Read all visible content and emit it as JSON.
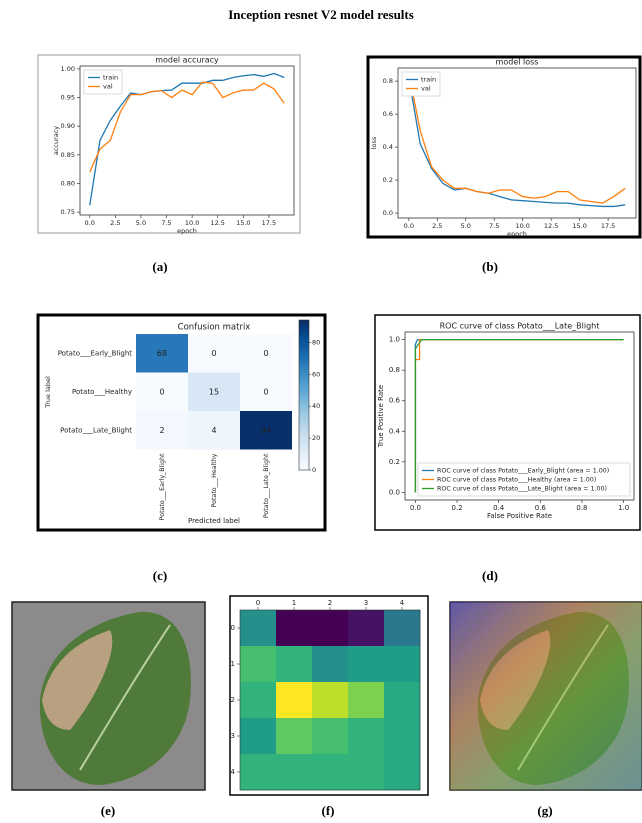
{
  "title": "Inception resnet V2 model results",
  "captions": [
    "(a)",
    "(b)",
    "(c)",
    "(d)",
    "(e)",
    "(f)",
    "(g)"
  ],
  "chart_data": [
    {
      "type": "line",
      "title": "model accuracy",
      "x_label": "epoch",
      "y_label": "accuracy",
      "x": [
        0,
        1,
        2,
        3,
        4,
        5,
        6,
        7,
        8,
        9,
        10,
        11,
        12,
        13,
        14,
        15,
        16,
        17,
        18,
        19
      ],
      "series": [
        {
          "name": "train",
          "color": "#1f77b4",
          "values": [
            0.762,
            0.875,
            0.91,
            0.935,
            0.958,
            0.955,
            0.96,
            0.962,
            0.963,
            0.975,
            0.975,
            0.975,
            0.98,
            0.98,
            0.985,
            0.988,
            0.99,
            0.987,
            0.992,
            0.985
          ]
        },
        {
          "name": "val",
          "color": "#ff7f0e",
          "values": [
            0.82,
            0.86,
            0.875,
            0.925,
            0.955,
            0.955,
            0.96,
            0.962,
            0.95,
            0.963,
            0.955,
            0.977,
            0.975,
            0.95,
            0.958,
            0.963,
            0.963,
            0.975,
            0.965,
            0.94
          ]
        }
      ],
      "xlim": [
        -0.95,
        19.95
      ],
      "ylim": [
        0.745,
        1.005
      ],
      "xticks": [
        {
          "value": 0,
          "label": "0.0"
        },
        2.5,
        {
          "value": 5,
          "label": "5.0"
        },
        7.5,
        {
          "value": 10,
          "label": "10.0"
        },
        12.5,
        {
          "value": 15,
          "label": "15.0"
        },
        17.5
      ],
      "yticks": [
        0.75,
        {
          "value": 0.8,
          "label": "0.80"
        },
        0.85,
        {
          "value": 0.9,
          "label": "0.90"
        },
        0.95,
        {
          "value": 1,
          "label": "1.00"
        }
      ],
      "legend": "upper left"
    },
    {
      "type": "line",
      "title": "model loss",
      "x_label": "epoch",
      "y_label": "loss",
      "x": [
        0,
        1,
        2,
        3,
        4,
        5,
        6,
        7,
        8,
        9,
        10,
        11,
        12,
        13,
        14,
        15,
        16,
        17,
        18,
        19
      ],
      "series": [
        {
          "name": "train",
          "color": "#1f77b4",
          "values": [
            0.82,
            0.42,
            0.27,
            0.18,
            0.14,
            0.15,
            0.13,
            0.12,
            0.1,
            0.08,
            0.075,
            0.07,
            0.065,
            0.06,
            0.06,
            0.05,
            0.045,
            0.04,
            0.04,
            0.05
          ]
        },
        {
          "name": "val",
          "color": "#ff7f0e",
          "values": [
            0.85,
            0.5,
            0.28,
            0.2,
            0.15,
            0.15,
            0.13,
            0.12,
            0.14,
            0.14,
            0.1,
            0.09,
            0.1,
            0.13,
            0.13,
            0.08,
            0.07,
            0.06,
            0.1,
            0.15
          ]
        }
      ],
      "xlim": [
        -0.95,
        19.95
      ],
      "ylim": [
        -0.03,
        0.88
      ],
      "xticks": [
        {
          "value": 0,
          "label": "0.0"
        },
        2.5,
        {
          "value": 5,
          "label": "5.0"
        },
        7.5,
        {
          "value": 10,
          "label": "10.0"
        },
        12.5,
        {
          "value": 15,
          "label": "15.0"
        },
        17.5
      ],
      "yticks": [
        {
          "value": 0,
          "label": "0.0"
        },
        0.2,
        0.4,
        0.6,
        0.8
      ],
      "legend": "upper left"
    },
    {
      "type": "confusion_matrix",
      "title": "Confusion matrix",
      "x_label": "Predicted label",
      "y_label": "True label",
      "categories": [
        "Potato___Early_Blight",
        "Potato___Healthy",
        "Potato___Late_Blight"
      ],
      "values": [
        [
          68,
          0,
          0
        ],
        [
          0,
          15,
          0
        ],
        [
          2,
          4,
          94
        ]
      ],
      "colormap": "Blues",
      "clim": [
        0,
        94
      ],
      "cticks": [
        0,
        20,
        40,
        60,
        80
      ]
    },
    {
      "type": "line",
      "title": "ROC curve of class Potato___Late_Blight",
      "x_label": "False Positive Rate",
      "y_label": "True Positive Rate",
      "series": [
        {
          "name": "ROC curve of class Potato___Early_Blight (area = 1.00)",
          "color": "#1f77b4",
          "x": [
            0,
            0,
            0.01,
            1
          ],
          "values": [
            0,
            0.97,
            1,
            1
          ]
        },
        {
          "name": "ROC curve of class Potato___Healthy (area = 1.00)",
          "color": "#ff7f0e",
          "x": [
            0,
            0,
            0.02,
            0.02,
            1
          ],
          "values": [
            0,
            0.87,
            0.87,
            1,
            1
          ]
        },
        {
          "name": "ROC curve of class Potato___Late_Blight (area = 1.00)",
          "color": "#2ca02c",
          "x": [
            0,
            0,
            0.03,
            1
          ],
          "values": [
            0,
            0.94,
            1,
            1
          ]
        }
      ],
      "xlim": [
        -0.05,
        1.05
      ],
      "ylim": [
        -0.05,
        1.05
      ],
      "xticks": [
        {
          "value": 0,
          "label": "0.0"
        },
        0.2,
        0.4,
        0.6,
        0.8,
        {
          "value": 1,
          "label": "1.0"
        }
      ],
      "yticks": [
        {
          "value": 0,
          "label": "0.0"
        },
        0.2,
        0.4,
        0.6,
        0.8,
        {
          "value": 1,
          "label": "1.0"
        }
      ],
      "legend": "lower right"
    },
    {
      "type": "heatmap",
      "x": [
        0,
        1,
        2,
        3,
        4
      ],
      "y": [
        0,
        1,
        2,
        3,
        4
      ],
      "values": [
        [
          0.5,
          0.0,
          0.0,
          0.05,
          0.4
        ],
        [
          0.7,
          0.65,
          0.5,
          0.55,
          0.55
        ],
        [
          0.65,
          1.0,
          0.9,
          0.8,
          0.6
        ],
        [
          0.55,
          0.75,
          0.7,
          0.65,
          0.6
        ],
        [
          0.65,
          0.65,
          0.65,
          0.65,
          0.6
        ]
      ],
      "colormap": "viridis",
      "clim": [
        0,
        1
      ]
    }
  ]
}
